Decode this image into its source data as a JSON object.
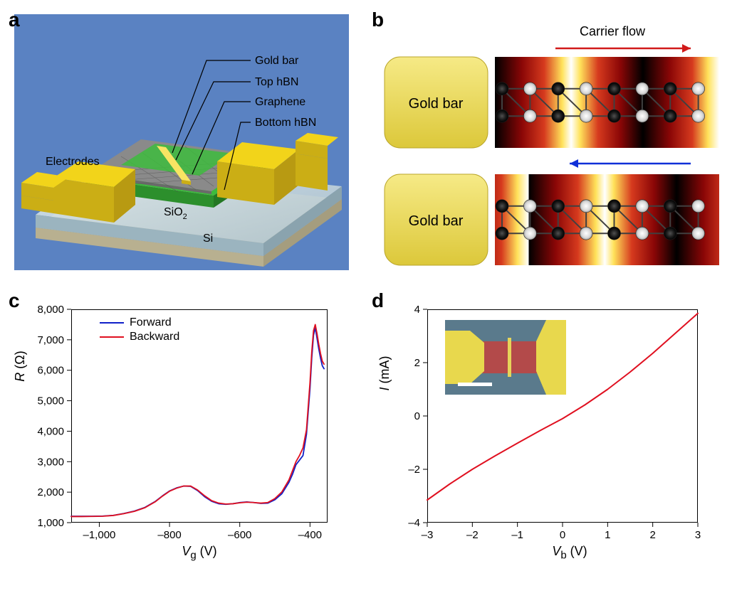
{
  "panels": {
    "a": {
      "label": "a",
      "annotations": {
        "gold_bar": "Gold bar",
        "top_hbn": "Top hBN",
        "graphene": "Graphene",
        "bottom_hbn": "Bottom hBN",
        "electrodes": "Electrodes",
        "sio2": "SiO",
        "sio2_sub": "2",
        "si": "Si"
      },
      "colors": {
        "background": "#5a82c2",
        "si": "#d8d2b8",
        "sio2": "#c6d7de",
        "electrode": "#f2d41a",
        "electrode_shadow": "#cbae15",
        "hbn": "#3dbb3d",
        "hbn_dark": "#2c8f2c",
        "graphene": "#8a8a8a",
        "gold_bar": "#f8e463",
        "text": "#000000"
      }
    },
    "b": {
      "label": "b",
      "carrier_flow_label": "Carrier flow",
      "gold_bar_label": "Gold bar",
      "colors": {
        "gold_bar_fill": "#e8d84d",
        "gold_bar_stroke": "#b9a52a",
        "arrow_red": "#d11a1a",
        "arrow_blue": "#1030d8",
        "atom_dark": "#1a1a1a",
        "atom_light": "#d8d8d8",
        "bond": "#606060",
        "heat_low": "#000000",
        "heat_mid": "#c40b0b",
        "heat_high": "#fff27a",
        "heat_peak": "#ffffff"
      }
    },
    "c": {
      "label": "c",
      "type": "line",
      "xlabel": "V",
      "xlabel_sub": "g",
      "xlabel_unit": " (V)",
      "ylabel": "R",
      "ylabel_unit": " (Ω)",
      "xlim": [
        -1080,
        -350
      ],
      "ylim": [
        1000,
        8000
      ],
      "xticks": [
        -1000,
        -800,
        -600,
        -400
      ],
      "yticks": [
        1000,
        2000,
        3000,
        4000,
        5000,
        6000,
        7000,
        8000
      ],
      "ytick_labels": [
        "1,000",
        "2,000",
        "3,000",
        "4,000",
        "5,000",
        "6,000",
        "7,000",
        "8,000"
      ],
      "legend": [
        {
          "label": "Forward",
          "color": "#1020c8"
        },
        {
          "label": "Backward",
          "color": "#e01020"
        }
      ],
      "series": {
        "forward": {
          "color": "#1020c8",
          "width": 1.8,
          "x": [
            -1080,
            -1050,
            -1020,
            -990,
            -960,
            -930,
            -900,
            -870,
            -840,
            -820,
            -800,
            -780,
            -760,
            -740,
            -720,
            -700,
            -680,
            -660,
            -640,
            -620,
            -600,
            -580,
            -560,
            -540,
            -520,
            -500,
            -480,
            -460,
            -450,
            -440,
            -430,
            -420,
            -410,
            -400,
            -395,
            -390,
            -385,
            -380,
            -375,
            -370,
            -365,
            -360
          ],
          "y": [
            1210,
            1210,
            1210,
            1215,
            1240,
            1300,
            1380,
            1500,
            1700,
            1880,
            2040,
            2140,
            2200,
            2190,
            2050,
            1850,
            1700,
            1620,
            1600,
            1620,
            1660,
            1680,
            1660,
            1630,
            1640,
            1750,
            1950,
            2320,
            2580,
            2900,
            3050,
            3200,
            3900,
            5400,
            6400,
            7150,
            7400,
            7050,
            6700,
            6400,
            6150,
            6050
          ]
        },
        "backward": {
          "color": "#e01020",
          "width": 1.8,
          "x": [
            -1080,
            -1050,
            -1020,
            -990,
            -960,
            -930,
            -900,
            -870,
            -840,
            -820,
            -800,
            -780,
            -760,
            -740,
            -720,
            -700,
            -680,
            -660,
            -640,
            -620,
            -600,
            -580,
            -560,
            -540,
            -520,
            -500,
            -480,
            -460,
            -450,
            -440,
            -430,
            -420,
            -410,
            -400,
            -395,
            -390,
            -385,
            -380,
            -375,
            -370,
            -365,
            -360
          ],
          "y": [
            1200,
            1200,
            1205,
            1210,
            1235,
            1295,
            1370,
            1490,
            1690,
            1870,
            2030,
            2130,
            2200,
            2200,
            2070,
            1880,
            1720,
            1640,
            1610,
            1620,
            1650,
            1670,
            1660,
            1640,
            1660,
            1790,
            2010,
            2400,
            2700,
            3000,
            3200,
            3450,
            4050,
            5600,
            6600,
            7300,
            7500,
            7200,
            6850,
            6550,
            6300,
            6200
          ]
        }
      },
      "label_fontsize": 18,
      "tick_fontsize": 15
    },
    "d": {
      "label": "d",
      "type": "line",
      "xlabel": "V",
      "xlabel_sub": "b",
      "xlabel_unit": " (V)",
      "ylabel": "I",
      "ylabel_unit": " (mA)",
      "xlim": [
        -3,
        3
      ],
      "ylim": [
        -4,
        4
      ],
      "xticks": [
        -3,
        -2,
        -1,
        0,
        1,
        2,
        3
      ],
      "yticks": [
        -4,
        -2,
        0,
        2,
        4
      ],
      "series": {
        "iv": {
          "color": "#e01020",
          "width": 2,
          "x": [
            -3,
            -2.5,
            -2,
            -1.5,
            -1,
            -0.5,
            0,
            0.5,
            1,
            1.5,
            2,
            2.5,
            3
          ],
          "y": [
            -3.15,
            -2.55,
            -2.0,
            -1.5,
            -1.02,
            -0.55,
            -0.1,
            0.42,
            1.0,
            1.65,
            2.35,
            3.1,
            3.85
          ]
        }
      },
      "inset": {
        "colors": {
          "bg": "#5a7a8c",
          "device": "#b34a4a",
          "gold": "#e8d84d",
          "bar": "#e6d45a",
          "scalebar": "#ffffff"
        }
      },
      "label_fontsize": 18,
      "tick_fontsize": 15
    }
  }
}
